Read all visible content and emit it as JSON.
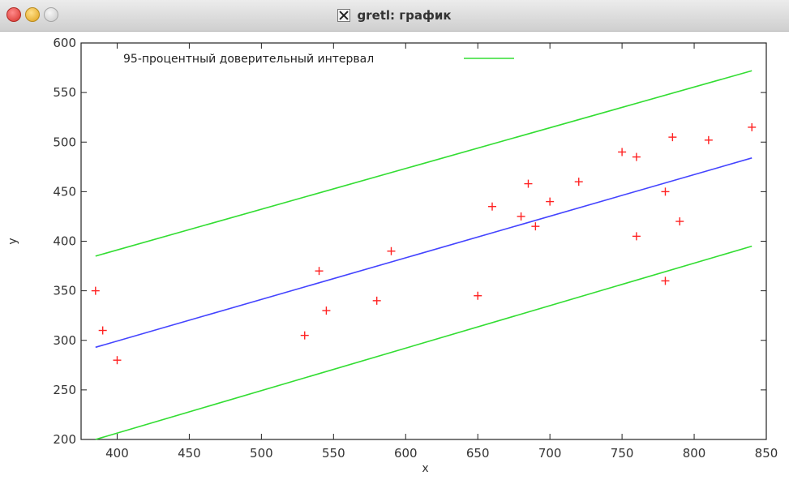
{
  "window": {
    "title": "gretl: график",
    "title_icon": "x11-icon",
    "buttons": [
      "close",
      "minimize",
      "maximize"
    ]
  },
  "chart_data": {
    "type": "scatter",
    "title": "",
    "xlabel": "x",
    "ylabel": "y",
    "xlim": [
      375,
      850
    ],
    "ylim": [
      200,
      600
    ],
    "x_ticks": [
      400,
      450,
      500,
      550,
      600,
      650,
      700,
      750,
      800,
      850
    ],
    "y_ticks": [
      200,
      250,
      300,
      350,
      400,
      450,
      500,
      550,
      600
    ],
    "grid": false,
    "legend": {
      "position": "top-left",
      "entries": [
        {
          "label": "95-процентный доверительный интервал",
          "color": "#33dd33"
        }
      ]
    },
    "points": {
      "marker": "+",
      "color": "#ff2222",
      "x": [
        385,
        390,
        400,
        530,
        540,
        545,
        580,
        590,
        650,
        660,
        680,
        685,
        690,
        700,
        720,
        750,
        760,
        760,
        780,
        780,
        785,
        790,
        810,
        840
      ],
      "y": [
        350,
        310,
        280,
        305,
        370,
        330,
        340,
        390,
        345,
        435,
        425,
        458,
        415,
        440,
        460,
        490,
        485,
        405,
        450,
        360,
        505,
        420,
        502,
        515
      ]
    },
    "fit_line": {
      "color": "#4444ff",
      "x": [
        385,
        840
      ],
      "y": [
        293,
        484
      ]
    },
    "confidence_upper": {
      "color": "#33dd33",
      "x": [
        385,
        840
      ],
      "y": [
        385,
        572
      ]
    },
    "confidence_lower": {
      "color": "#33dd33",
      "x": [
        385,
        840
      ],
      "y": [
        200,
        395
      ]
    }
  }
}
